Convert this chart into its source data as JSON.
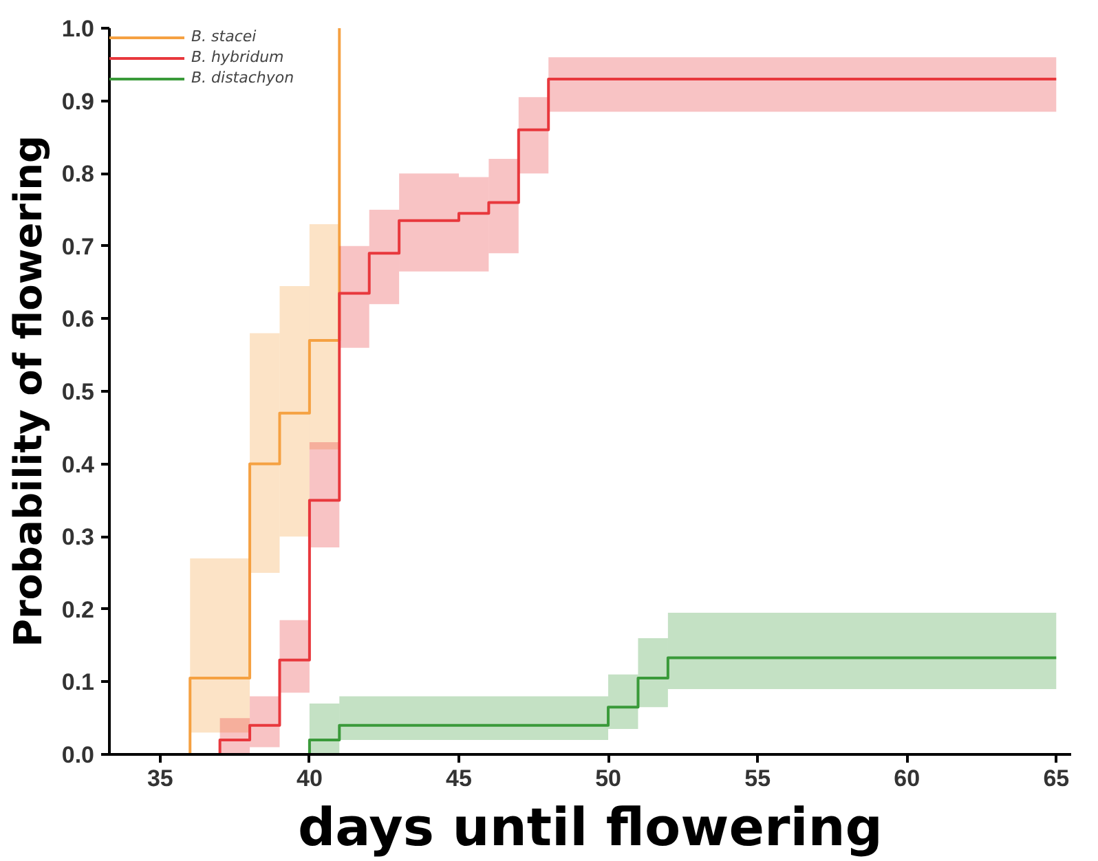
{
  "chart_data": {
    "type": "step",
    "xlabel": "days until flowering",
    "ylabel": "Probability of flowering",
    "xlim": [
      33.3,
      65.5
    ],
    "ylim": [
      0,
      1.0
    ],
    "xticks": [
      35,
      40,
      45,
      50,
      55,
      60,
      65
    ],
    "yticks": [
      {
        "value": 0,
        "label": "0.0"
      },
      0.1,
      0.2,
      0.3,
      0.4,
      0.5,
      0.6,
      0.7,
      0.8,
      0.9,
      {
        "value": 1,
        "label": "1.0"
      }
    ],
    "grid": false,
    "legend": "top left",
    "line_style": "solid",
    "marker": "none",
    "series": [
      {
        "name": "B. stacei",
        "color": "#f5a142",
        "x": [
          33.3,
          36,
          38,
          39,
          40,
          41
        ],
        "values": [
          0,
          0.105,
          0.4,
          0.47,
          0.57,
          1.0
        ],
        "lower": [
          null,
          0.03,
          0.25,
          0.3,
          0.42,
          0.42
        ],
        "upper": [
          null,
          0.27,
          0.58,
          0.645,
          0.73,
          0.73
        ]
      },
      {
        "name": "B. hybridum",
        "color": "#e8383d",
        "x": [
          33.3,
          37,
          38,
          39,
          40,
          41,
          42,
          43,
          45,
          46,
          47,
          48,
          65
        ],
        "values": [
          0,
          0.02,
          0.04,
          0.13,
          0.35,
          0.635,
          0.69,
          0.735,
          0.745,
          0.76,
          0.86,
          0.93,
          0.93
        ],
        "lower": [
          null,
          0,
          0.01,
          0.085,
          0.285,
          0.56,
          0.62,
          0.665,
          0.665,
          0.69,
          0.8,
          0.885,
          0.885
        ],
        "upper": [
          null,
          0.05,
          0.08,
          0.185,
          0.43,
          0.7,
          0.75,
          0.8,
          0.795,
          0.82,
          0.905,
          0.96,
          0.96
        ]
      },
      {
        "name": "B. distachyon",
        "color": "#3a9a3a",
        "x": [
          33.3,
          40,
          41,
          50,
          51,
          52,
          65
        ],
        "values": [
          0,
          0.02,
          0.04,
          0.065,
          0.105,
          0.133,
          0.133
        ],
        "lower": [
          null,
          0,
          0.02,
          0.035,
          0.065,
          0.09,
          0.09
        ],
        "upper": [
          null,
          0.07,
          0.08,
          0.11,
          0.16,
          0.195,
          0.195
        ]
      }
    ]
  }
}
